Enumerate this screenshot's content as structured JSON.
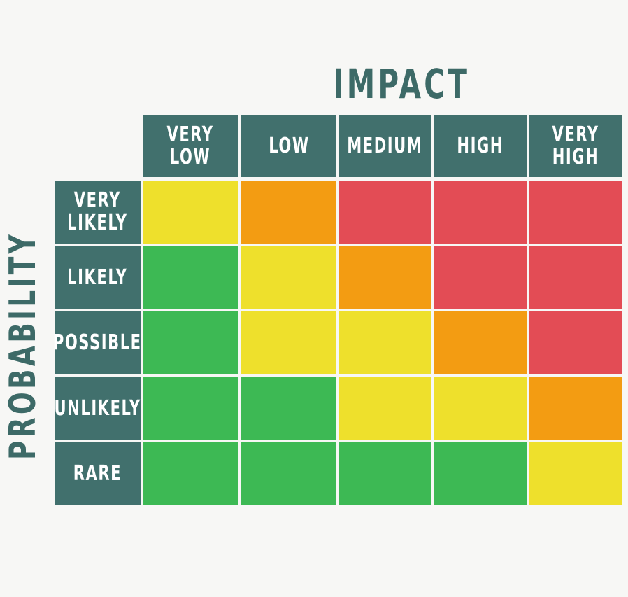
{
  "title_impact": "IMPACT",
  "title_probability": "PROBABILITY",
  "impact_levels": [
    "Very\nLow",
    "Low",
    "Medium",
    "High",
    "Very\nHigh"
  ],
  "probability_levels": [
    "Very\nLikely",
    "Likely",
    "Possible",
    "Unlikely",
    "Rare"
  ],
  "colors": {
    "header": "#41706d",
    "green": "#3db954",
    "yellow": "#eee02c",
    "orange": "#f39c12",
    "red": "#e34c55"
  },
  "grid": [
    [
      "yellow",
      "orange",
      "red",
      "red",
      "red"
    ],
    [
      "green",
      "yellow",
      "orange",
      "red",
      "red"
    ],
    [
      "green",
      "yellow",
      "yellow",
      "orange",
      "red"
    ],
    [
      "green",
      "green",
      "yellow",
      "yellow",
      "orange"
    ],
    [
      "green",
      "green",
      "green",
      "green",
      "yellow"
    ]
  ]
}
